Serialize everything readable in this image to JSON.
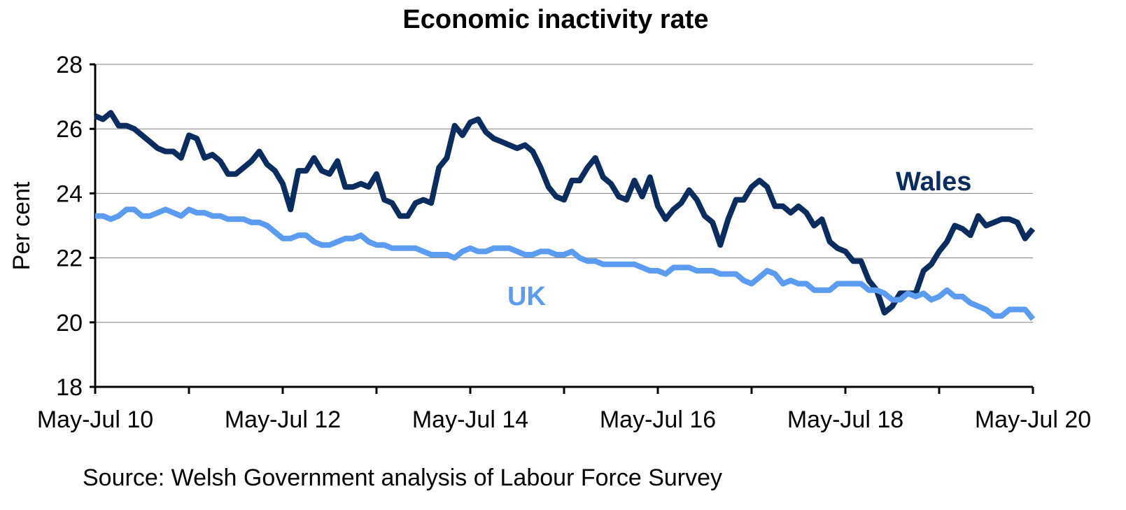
{
  "chart_data": {
    "type": "line",
    "title": "Economic inactivity rate",
    "ylabel": "Per cent",
    "source": "Source: Welsh Government analysis of Labour Force Survey",
    "ylim": [
      18,
      28
    ],
    "yticks": [
      "18",
      "20",
      "22",
      "24",
      "26",
      "28"
    ],
    "xticks": [
      "May-Jul 10",
      "May-Jul 12",
      "May-Jul 14",
      "May-Jul 16",
      "May-Jul 18",
      "May-Jul 20"
    ],
    "grid": true,
    "series": [
      {
        "name": "Wales",
        "color": "#0b2c5f",
        "values": [
          26.4,
          26.3,
          26.5,
          26.1,
          26.1,
          26.0,
          25.8,
          25.6,
          25.4,
          25.3,
          25.3,
          25.1,
          25.8,
          25.7,
          25.1,
          25.2,
          25.0,
          24.6,
          24.6,
          24.8,
          25.0,
          25.3,
          24.9,
          24.7,
          24.3,
          23.5,
          24.7,
          24.7,
          25.1,
          24.7,
          24.6,
          25.0,
          24.2,
          24.2,
          24.3,
          24.2,
          24.6,
          23.8,
          23.7,
          23.3,
          23.3,
          23.7,
          23.8,
          23.7,
          24.8,
          25.1,
          26.1,
          25.8,
          26.2,
          26.3,
          25.9,
          25.7,
          25.6,
          25.5,
          25.4,
          25.5,
          25.3,
          24.8,
          24.2,
          23.9,
          23.8,
          24.4,
          24.4,
          24.8,
          25.1,
          24.5,
          24.3,
          23.9,
          23.8,
          24.4,
          23.9,
          24.5,
          23.6,
          23.2,
          23.5,
          23.7,
          24.1,
          23.8,
          23.3,
          23.1,
          22.4,
          23.2,
          23.8,
          23.8,
          24.2,
          24.4,
          24.2,
          23.6,
          23.6,
          23.4,
          23.6,
          23.4,
          23.0,
          23.2,
          22.5,
          22.3,
          22.2,
          21.9,
          21.9,
          21.3,
          21.0,
          20.3,
          20.5,
          20.9,
          20.9,
          20.9,
          21.6,
          21.8,
          22.2,
          22.5,
          23.0,
          22.9,
          22.7,
          23.3,
          23.0,
          23.1,
          23.2,
          23.2,
          23.1,
          22.6,
          22.9
        ],
        "end_label": "Wales"
      },
      {
        "name": "UK",
        "color": "#5b9bf0",
        "values": [
          23.3,
          23.3,
          23.2,
          23.3,
          23.5,
          23.5,
          23.3,
          23.3,
          23.4,
          23.5,
          23.4,
          23.3,
          23.5,
          23.4,
          23.4,
          23.3,
          23.3,
          23.2,
          23.2,
          23.2,
          23.1,
          23.1,
          23.0,
          22.8,
          22.6,
          22.6,
          22.7,
          22.7,
          22.5,
          22.4,
          22.4,
          22.5,
          22.6,
          22.6,
          22.7,
          22.5,
          22.4,
          22.4,
          22.3,
          22.3,
          22.3,
          22.3,
          22.2,
          22.1,
          22.1,
          22.1,
          22.0,
          22.2,
          22.3,
          22.2,
          22.2,
          22.3,
          22.3,
          22.3,
          22.2,
          22.1,
          22.1,
          22.2,
          22.2,
          22.1,
          22.1,
          22.2,
          22.0,
          21.9,
          21.9,
          21.8,
          21.8,
          21.8,
          21.8,
          21.8,
          21.7,
          21.6,
          21.6,
          21.5,
          21.7,
          21.7,
          21.7,
          21.6,
          21.6,
          21.6,
          21.5,
          21.5,
          21.5,
          21.3,
          21.2,
          21.4,
          21.6,
          21.5,
          21.2,
          21.3,
          21.2,
          21.2,
          21.0,
          21.0,
          21.0,
          21.2,
          21.2,
          21.2,
          21.2,
          21.0,
          21.0,
          20.9,
          20.7,
          20.7,
          20.9,
          20.8,
          20.9,
          20.7,
          20.8,
          21.0,
          20.8,
          20.8,
          20.6,
          20.5,
          20.4,
          20.2,
          20.2,
          20.4,
          20.4,
          20.4,
          20.1
        ],
        "end_label": "UK"
      }
    ]
  }
}
